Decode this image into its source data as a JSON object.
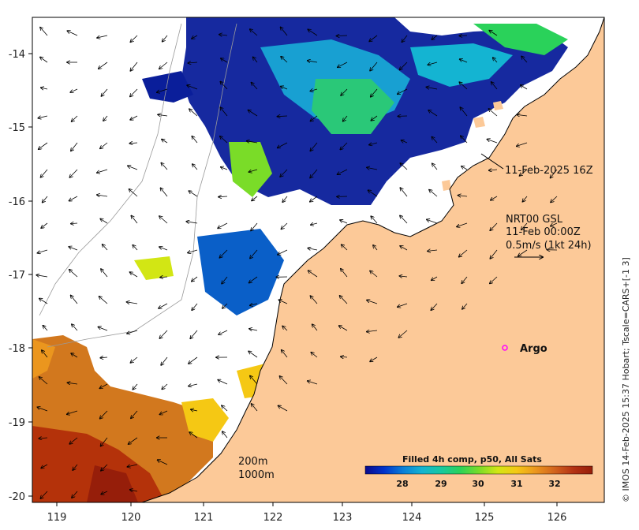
{
  "map": {
    "x_ticks": [
      "119",
      "120",
      "121",
      "122",
      "123",
      "124",
      "125",
      "126"
    ],
    "y_ticks": [
      "-14",
      "-15",
      "-16",
      "-17",
      "-18",
      "-19",
      "-20"
    ],
    "colors": {
      "land": "#fcc998",
      "ocean": "#ffffff",
      "frame": "#000000",
      "argo_marker": "#ff00ff"
    }
  },
  "annotations": {
    "swath_time": "11-Feb-2025 16Z",
    "current_source": "NRT00 GSL",
    "current_time": "11-Feb 00:00Z",
    "current_scale": "0.5m/s (1kt 24h)",
    "argo_label": "Argo",
    "contour_200": "200m",
    "contour_1000": "1000m"
  },
  "colorbar": {
    "title": "Filled 4h comp, p50, All Sats",
    "ticks": [
      "28",
      "29",
      "30",
      "31",
      "32"
    ],
    "colors": [
      "#0a0a8c",
      "#0033cc",
      "#0a7fd8",
      "#14b4d2",
      "#18c8a0",
      "#2ad25a",
      "#7adc28",
      "#d2e614",
      "#f5c814",
      "#eb961e",
      "#d2641e",
      "#b43214",
      "#961e0a"
    ]
  },
  "credit": "© IMOS 14-Feb-2025 15:37 Hobart; Tscale=CARS+[-1 3]"
}
